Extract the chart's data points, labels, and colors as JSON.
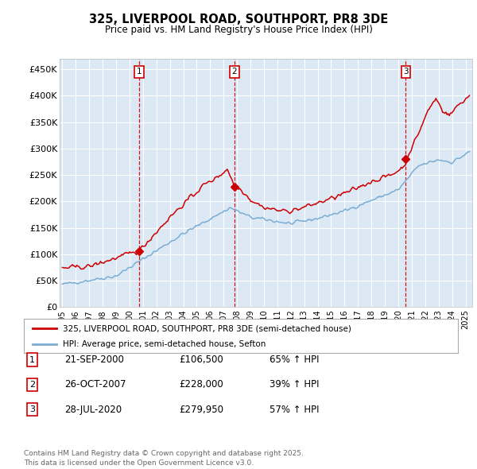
{
  "title": "325, LIVERPOOL ROAD, SOUTHPORT, PR8 3DE",
  "subtitle": "Price paid vs. HM Land Registry's House Price Index (HPI)",
  "background_color": "#ffffff",
  "plot_bg_color": "#dce9f5",
  "grid_color": "#ffffff",
  "sale_color": "#cc0000",
  "hpi_color": "#7aadd4",
  "sale_dates_num": [
    2000.72,
    2007.81,
    2020.56
  ],
  "sale_prices": [
    106500,
    228000,
    279950
  ],
  "sale_labels": [
    "1",
    "2",
    "3"
  ],
  "vline_color": "#cc0000",
  "legend_sale_label": "325, LIVERPOOL ROAD, SOUTHPORT, PR8 3DE (semi-detached house)",
  "legend_hpi_label": "HPI: Average price, semi-detached house, Sefton",
  "table_rows": [
    [
      "1",
      "21-SEP-2000",
      "£106,500",
      "65% ↑ HPI"
    ],
    [
      "2",
      "26-OCT-2007",
      "£228,000",
      "39% ↑ HPI"
    ],
    [
      "3",
      "28-JUL-2020",
      "£279,950",
      "57% ↑ HPI"
    ]
  ],
  "footer": "Contains HM Land Registry data © Crown copyright and database right 2025.\nThis data is licensed under the Open Government Licence v3.0.",
  "ylim": [
    0,
    470000
  ],
  "xlim_start": 1994.8,
  "xlim_end": 2025.5,
  "yticks": [
    0,
    50000,
    100000,
    150000,
    200000,
    250000,
    300000,
    350000,
    400000,
    450000
  ],
  "ytick_labels": [
    "£0",
    "£50K",
    "£100K",
    "£150K",
    "£200K",
    "£250K",
    "£300K",
    "£350K",
    "£400K",
    "£450K"
  ],
  "xticks": [
    1995,
    1996,
    1997,
    1998,
    1999,
    2000,
    2001,
    2002,
    2003,
    2004,
    2005,
    2006,
    2007,
    2008,
    2009,
    2010,
    2011,
    2012,
    2013,
    2014,
    2015,
    2016,
    2017,
    2018,
    2019,
    2020,
    2021,
    2022,
    2023,
    2024,
    2025
  ]
}
